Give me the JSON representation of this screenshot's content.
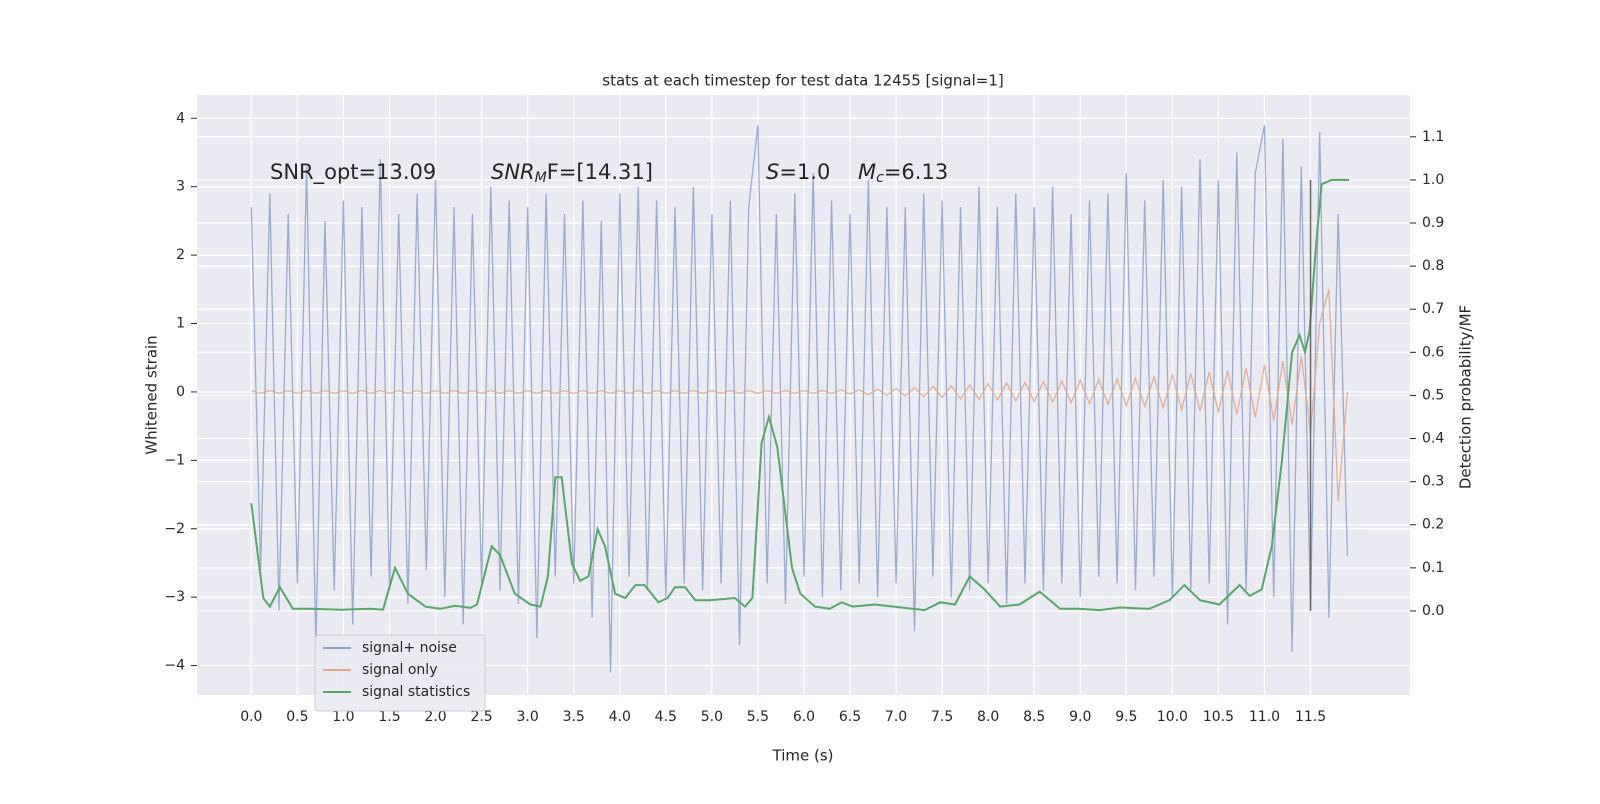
{
  "chart_data": {
    "type": "line",
    "title": "stats at each timestep for test data 12455 [signal=1]",
    "xlabel": "Time (s)",
    "ylabel": "Whitened strain",
    "y2label": "Detection probability/MF",
    "xlim": [
      -0.59,
      12.58
    ],
    "ylim": [
      -4.43,
      4.34
    ],
    "y2lim": [
      -0.195,
      1.197
    ],
    "grid": true,
    "legend": "lower left",
    "xticks": [
      {
        "value": 0,
        "label": "0.0"
      },
      {
        "value": 0.5,
        "label": "0.5"
      },
      {
        "value": 1,
        "label": "1.0"
      },
      {
        "value": 1.5,
        "label": "1.5"
      },
      {
        "value": 2,
        "label": "2.0"
      },
      {
        "value": 2.5,
        "label": "2.5"
      },
      {
        "value": 3,
        "label": "3.0"
      },
      {
        "value": 3.5,
        "label": "3.5"
      },
      {
        "value": 4,
        "label": "4.0"
      },
      {
        "value": 4.5,
        "label": "4.5"
      },
      {
        "value": 5,
        "label": "5.0"
      },
      {
        "value": 5.5,
        "label": "5.5"
      },
      {
        "value": 6,
        "label": "6.0"
      },
      {
        "value": 6.5,
        "label": "6.5"
      },
      {
        "value": 7,
        "label": "7.0"
      },
      {
        "value": 7.5,
        "label": "7.5"
      },
      {
        "value": 8,
        "label": "8.0"
      },
      {
        "value": 8.5,
        "label": "8.5"
      },
      {
        "value": 9,
        "label": "9.0"
      },
      {
        "value": 9.5,
        "label": "9.5"
      },
      {
        "value": 10,
        "label": "10.0"
      },
      {
        "value": 10.5,
        "label": "10.5"
      },
      {
        "value": 11,
        "label": "11.0"
      },
      {
        "value": 11.5,
        "label": "11.5"
      }
    ],
    "yticks": [
      {
        "value": -4,
        "label": "−4"
      },
      {
        "value": -3,
        "label": "−3"
      },
      {
        "value": -2,
        "label": "−2"
      },
      {
        "value": -1,
        "label": "−1"
      },
      0,
      1,
      2,
      3,
      4
    ],
    "y2ticks": [
      {
        "value": 0,
        "label": "0.0"
      },
      {
        "value": 0.1,
        "label": "0.1"
      },
      {
        "value": 0.2,
        "label": "0.2"
      },
      {
        "value": 0.3,
        "label": "0.3"
      },
      {
        "value": 0.4,
        "label": "0.4"
      },
      {
        "value": 0.5,
        "label": "0.5"
      },
      {
        "value": 0.6,
        "label": "0.6"
      },
      {
        "value": 0.7,
        "label": "0.7"
      },
      {
        "value": 0.8,
        "label": "0.8"
      },
      {
        "value": 0.9,
        "label": "0.9"
      },
      {
        "value": 1,
        "label": "1.0"
      },
      {
        "value": 1.1,
        "label": "1.1"
      }
    ],
    "x": [
      0,
      0.1,
      0.2,
      0.3,
      0.4,
      0.5,
      0.6,
      0.7,
      0.8,
      0.9,
      1,
      1.1,
      1.2,
      1.3,
      1.4,
      1.5,
      1.6,
      1.7,
      1.8,
      1.9,
      2,
      2.1,
      2.2,
      2.3,
      2.4,
      2.5,
      2.6,
      2.7,
      2.8,
      2.9,
      3,
      3.1,
      3.2,
      3.3,
      3.4,
      3.5,
      3.6,
      3.7,
      3.8,
      3.9,
      4,
      4.1,
      4.2,
      4.3,
      4.4,
      4.5,
      4.6,
      4.7,
      4.8,
      4.9,
      5,
      5.1,
      5.2,
      5.3,
      5.4,
      5.5,
      5.6,
      5.7,
      5.8,
      5.9,
      6,
      6.1,
      6.2,
      6.3,
      6.4,
      6.5,
      6.6,
      6.7,
      6.8,
      6.9,
      7,
      7.1,
      7.2,
      7.3,
      7.4,
      7.5,
      7.6,
      7.7,
      7.8,
      7.9,
      8,
      8.1,
      8.2,
      8.3,
      8.4,
      8.5,
      8.6,
      8.7,
      8.8,
      8.9,
      9,
      9.1,
      9.2,
      9.3,
      9.4,
      9.5,
      9.6,
      9.7,
      9.8,
      9.9,
      10,
      10.1,
      10.2,
      10.3,
      10.4,
      10.5,
      10.6,
      10.7,
      10.8,
      10.9,
      11,
      11.1,
      11.2,
      11.3,
      11.4,
      11.5,
      11.6,
      11.7,
      11.8,
      11.9
    ],
    "series": [
      {
        "name": "signal+ noise",
        "color": "#8da0cb",
        "values": [
          2.7,
          -2.6,
          2.9,
          -3.2,
          2.6,
          -2.8,
          3.3,
          -3.7,
          2.5,
          -2.9,
          2.8,
          -3.4,
          2.7,
          -2.7,
          3.4,
          -2.9,
          2.6,
          -3.1,
          2.9,
          -2.6,
          3.1,
          -3.0,
          2.7,
          -3.4,
          2.6,
          -2.8,
          3.0,
          -2.9,
          2.8,
          -3.1,
          2.7,
          -3.6,
          2.9,
          -2.7,
          2.6,
          -2.8,
          2.8,
          -3.3,
          2.5,
          -4.1,
          2.9,
          -2.7,
          3.0,
          -2.9,
          2.8,
          -3.0,
          2.7,
          -2.8,
          3.0,
          -2.9,
          2.6,
          -2.8,
          2.8,
          -3.7,
          2.7,
          3.9,
          -2.8,
          2.6,
          -3.1,
          2.9,
          -2.7,
          3.2,
          -3.0,
          2.8,
          -2.9,
          2.6,
          -2.8,
          3.1,
          -3.0,
          2.7,
          -2.8,
          2.7,
          -3.5,
          2.9,
          -2.7,
          2.8,
          -3.0,
          2.7,
          -2.9,
          3.0,
          -2.8,
          2.7,
          -3.1,
          2.9,
          -2.8,
          2.7,
          -2.9,
          3.0,
          -2.8,
          2.6,
          -3.0,
          2.8,
          -2.7,
          2.9,
          -2.8,
          3.2,
          -2.9,
          2.8,
          -2.7,
          3.1,
          -3.0,
          3.0,
          -2.9,
          3.4,
          -2.8,
          3.1,
          -3.4,
          3.5,
          -2.9,
          3.2,
          3.9,
          -3.0,
          3.7,
          -3.8,
          3.3,
          -3.2,
          3.8,
          -3.3,
          2.6,
          -2.4
        ]
      },
      {
        "name": "signal only",
        "color": "#e5a585",
        "values": [
          0.02,
          -0.02,
          0.02,
          -0.02,
          0.02,
          -0.02,
          0.02,
          -0.02,
          0.02,
          -0.02,
          0.02,
          -0.02,
          0.02,
          -0.02,
          0.02,
          -0.02,
          0.02,
          -0.02,
          0.02,
          -0.02,
          0.02,
          -0.02,
          0.02,
          -0.02,
          0.02,
          -0.02,
          0.02,
          -0.02,
          0.02,
          -0.02,
          0.02,
          -0.02,
          0.02,
          -0.02,
          0.02,
          -0.02,
          0.02,
          -0.02,
          0.02,
          -0.02,
          0.02,
          -0.02,
          0.02,
          -0.02,
          0.02,
          -0.02,
          0.02,
          -0.02,
          0.02,
          -0.02,
          0.02,
          -0.02,
          0.02,
          -0.02,
          0.02,
          -0.02,
          0.02,
          -0.02,
          0.02,
          -0.02,
          0.02,
          -0.02,
          0.02,
          -0.02,
          0.03,
          -0.03,
          0.03,
          -0.04,
          0.04,
          -0.05,
          0.05,
          -0.06,
          0.06,
          -0.07,
          0.08,
          -0.08,
          0.09,
          -0.1,
          0.1,
          -0.11,
          0.12,
          -0.12,
          0.13,
          -0.13,
          0.14,
          -0.14,
          0.15,
          -0.15,
          0.16,
          -0.16,
          0.17,
          -0.17,
          0.18,
          -0.18,
          0.19,
          -0.2,
          0.2,
          -0.21,
          0.22,
          -0.23,
          0.25,
          -0.26,
          0.27,
          -0.28,
          0.29,
          -0.3,
          0.31,
          -0.33,
          0.35,
          -0.37,
          0.4,
          -0.42,
          0.45,
          -0.48,
          0.52,
          -0.6,
          1.0,
          1.5,
          -1.6,
          0.0
        ]
      },
      {
        "name": "signal statistics",
        "color": "#55a868",
        "axis": "y2",
        "x": [
          0,
          0.13,
          0.2,
          0.31,
          0.45,
          0.64,
          0.97,
          1.29,
          1.43,
          1.56,
          1.7,
          1.89,
          2.05,
          2.21,
          2.38,
          2.45,
          2.61,
          2.7,
          2.86,
          3.03,
          3.14,
          3.22,
          3.3,
          3.37,
          3.48,
          3.57,
          3.66,
          3.76,
          3.84,
          3.95,
          4.06,
          4.17,
          4.27,
          4.42,
          4.52,
          4.6,
          4.71,
          4.82,
          4.98,
          5.25,
          5.36,
          5.44,
          5.54,
          5.62,
          5.71,
          5.87,
          5.96,
          6.12,
          6.28,
          6.41,
          6.53,
          6.77,
          7.31,
          7.48,
          7.64,
          7.8,
          7.96,
          8.13,
          8.34,
          8.56,
          8.78,
          8.99,
          9.21,
          9.43,
          9.75,
          9.97,
          10.13,
          10.3,
          10.51,
          10.73,
          10.84,
          10.97,
          11.08,
          11.19,
          11.3,
          11.38,
          11.44,
          11.49,
          11.56,
          11.62,
          11.73,
          11.92
        ],
        "values": [
          0.25,
          0.03,
          0.01,
          0.055,
          0.005,
          0.005,
          0.003,
          0.005,
          0.003,
          0.1,
          0.04,
          0.01,
          0.005,
          0.012,
          0.007,
          0.015,
          0.15,
          0.13,
          0.04,
          0.015,
          0.01,
          0.08,
          0.31,
          0.31,
          0.11,
          0.07,
          0.08,
          0.19,
          0.15,
          0.04,
          0.03,
          0.06,
          0.06,
          0.02,
          0.03,
          0.055,
          0.055,
          0.025,
          0.025,
          0.03,
          0.01,
          0.03,
          0.39,
          0.45,
          0.38,
          0.1,
          0.04,
          0.01,
          0.005,
          0.02,
          0.01,
          0.015,
          0.002,
          0.02,
          0.015,
          0.08,
          0.05,
          0.01,
          0.015,
          0.045,
          0.005,
          0.005,
          0.002,
          0.008,
          0.005,
          0.025,
          0.06,
          0.025,
          0.015,
          0.06,
          0.035,
          0.05,
          0.15,
          0.35,
          0.6,
          0.64,
          0.6,
          0.65,
          0.85,
          0.99,
          1.0,
          1.0
        ]
      }
    ],
    "vline": {
      "x": 11.5,
      "ymin": -3.2,
      "ymax": 3.1,
      "color": "#666666"
    },
    "annotations": [
      {
        "parts": [
          {
            "text": "SNR_opt=13.09",
            "style": "normal"
          }
        ]
      },
      {
        "parts": [
          {
            "text": "SNR",
            "style": "italic"
          },
          {
            "text": "M",
            "style": "sub"
          },
          {
            "text": "F=[14.31]",
            "style": "normal"
          }
        ]
      },
      {
        "parts": [
          {
            "text": "S",
            "style": "italic"
          },
          {
            "text": "=1.0",
            "style": "normal"
          }
        ]
      },
      {
        "parts": [
          {
            "text": "M",
            "style": "italic"
          },
          {
            "text": "c",
            "style": "sub"
          },
          {
            "text": "=6.13",
            "style": "normal"
          }
        ]
      }
    ]
  }
}
